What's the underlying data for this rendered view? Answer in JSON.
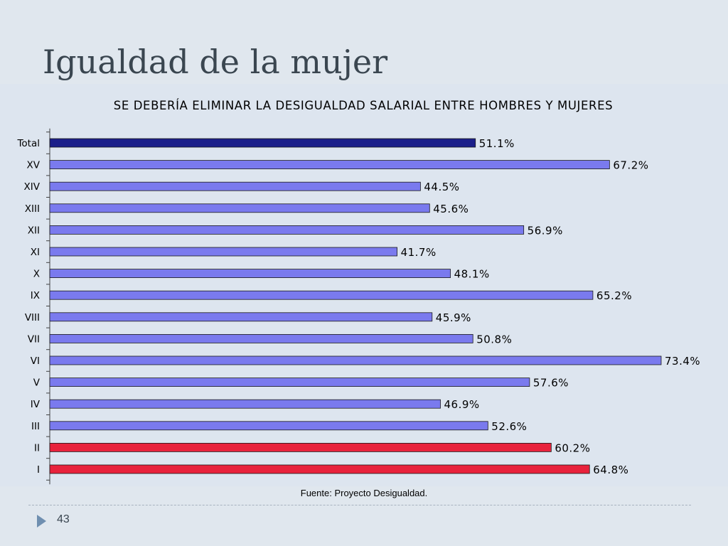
{
  "slide": {
    "title": "Igualdad de la mujer",
    "source": "Fuente: Proyecto Desigualdad.",
    "page_number": "43"
  },
  "colors": {
    "total_bar": "#1b1f8a",
    "region_bar": "#7a7aee",
    "highlight_bar": "#e8223c",
    "bar_outline": "#1a1a1a",
    "axis": "#404040"
  },
  "icons": {
    "footer_marker": "triangle-right-icon"
  },
  "chart_data": {
    "type": "bar",
    "orientation": "horizontal",
    "title": "SE DEBERÍA ELIMINAR LA DESIGUALDAD SALARIAL ENTRE HOMBRES Y MUJERES",
    "categories": [
      "Total",
      "XV",
      "XIV",
      "XIII",
      "XII",
      "XI",
      "X",
      "IX",
      "VIII",
      "VII",
      "VI",
      "V",
      "IV",
      "III",
      "II",
      "I"
    ],
    "values": [
      51.1,
      67.2,
      44.5,
      45.6,
      56.9,
      41.7,
      48.1,
      65.2,
      45.9,
      50.8,
      73.4,
      57.6,
      46.9,
      52.6,
      60.2,
      64.8
    ],
    "value_labels": [
      "51.1%",
      "67.2%",
      "44.5%",
      "45.6%",
      "56.9%",
      "41.7%",
      "48.1%",
      "65.2%",
      "45.9%",
      "50.8%",
      "73.4%",
      "57.6%",
      "46.9%",
      "52.6%",
      "60.2%",
      "64.8%"
    ],
    "bar_groups": [
      "total",
      "region",
      "region",
      "region",
      "region",
      "region",
      "region",
      "region",
      "region",
      "region",
      "region",
      "region",
      "region",
      "region",
      "highlight",
      "highlight"
    ],
    "xlim": [
      0,
      73.4
    ],
    "xlabel": "",
    "ylabel": "",
    "grid": false,
    "legend": false
  }
}
